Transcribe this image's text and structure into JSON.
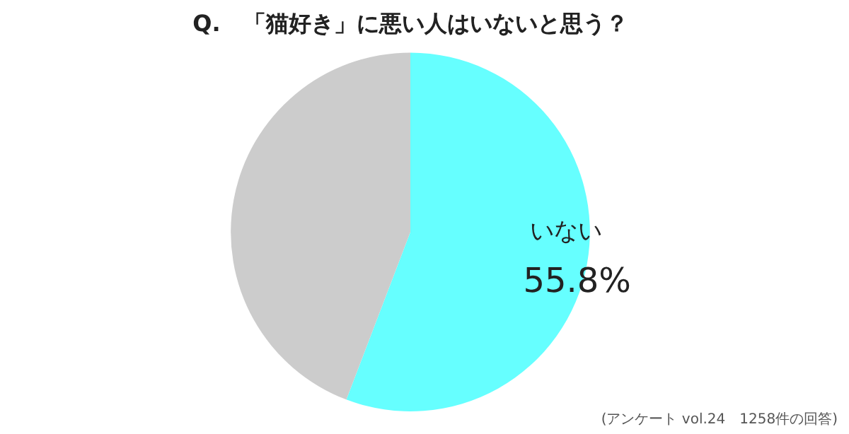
{
  "chart_data": {
    "type": "pie",
    "title": "Q.　「猫好き」に悪い人はいないと思う？",
    "categories": [
      "いない",
      null
    ],
    "values": [
      55.8,
      44.2
    ],
    "colors": [
      "#66ffff",
      "#cccccc"
    ],
    "value_labels": [
      "55.8%",
      null
    ],
    "legend": false,
    "annotations": [
      "(アンケート vol.24　1258件の回答)"
    ]
  }
}
